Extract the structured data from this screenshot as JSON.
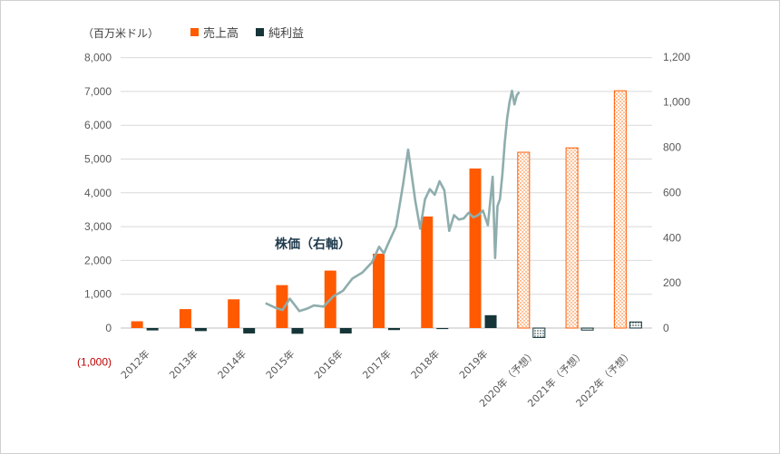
{
  "chart_data": {
    "type": "bar",
    "unit_label": "（百万米ドル）",
    "legend": [
      "売上高",
      "純利益"
    ],
    "annotation": "株価（右軸）",
    "categories": [
      "2012年",
      "2013年",
      "2014年",
      "2015年",
      "2016年",
      "2017年",
      "2018年",
      "2019年",
      "2020年（予想）",
      "2021年（予想）",
      "2022年（予想）"
    ],
    "series": [
      {
        "name": "売上高",
        "values": [
          200,
          560,
          850,
          1270,
          1700,
          2200,
          3300,
          4720,
          5200,
          5330,
          7020
        ],
        "forecast_from_index": 8
      },
      {
        "name": "純利益",
        "values": [
          -70,
          -90,
          -160,
          -170,
          -160,
          -60,
          -30,
          380,
          -280,
          -60,
          180
        ],
        "forecast_from_index": 8
      }
    ],
    "y_left": {
      "min": -1000,
      "max": 8000,
      "step": 1000,
      "ticks": [
        "(1,000)",
        "0",
        "1,000",
        "2,000",
        "3,000",
        "4,000",
        "5,000",
        "6,000",
        "7,000",
        "8,000"
      ]
    },
    "y_right": {
      "min": -150,
      "max": 1200,
      "step": 200,
      "ticks": [
        "0",
        "200",
        "400",
        "600",
        "800",
        "1,000",
        "1,200"
      ]
    },
    "stock_price": {
      "axis": "right",
      "x": [
        3.0,
        3.2,
        3.35,
        3.5,
        3.7,
        3.85,
        4.0,
        4.2,
        4.4,
        4.6,
        4.8,
        5.0,
        5.2,
        5.35,
        5.45,
        5.55,
        5.7,
        5.85,
        5.95,
        6.1,
        6.2,
        6.3,
        6.4,
        6.5,
        6.6,
        6.7,
        6.8,
        6.9,
        7.0,
        7.1,
        7.2,
        7.3,
        7.4,
        7.5,
        7.6,
        7.7,
        7.75,
        7.8,
        7.85,
        7.9,
        7.95,
        8.0,
        8.05,
        8.1,
        8.15,
        8.2,
        8.25
      ],
      "values": [
        110,
        90,
        80,
        130,
        75,
        85,
        100,
        95,
        140,
        165,
        220,
        245,
        290,
        360,
        330,
        380,
        450,
        640,
        790,
        560,
        440,
        570,
        615,
        590,
        650,
        610,
        430,
        500,
        480,
        485,
        510,
        490,
        500,
        520,
        455,
        670,
        310,
        540,
        570,
        680,
        820,
        930,
        1000,
        1050,
        990,
        1030,
        1045
      ]
    }
  }
}
